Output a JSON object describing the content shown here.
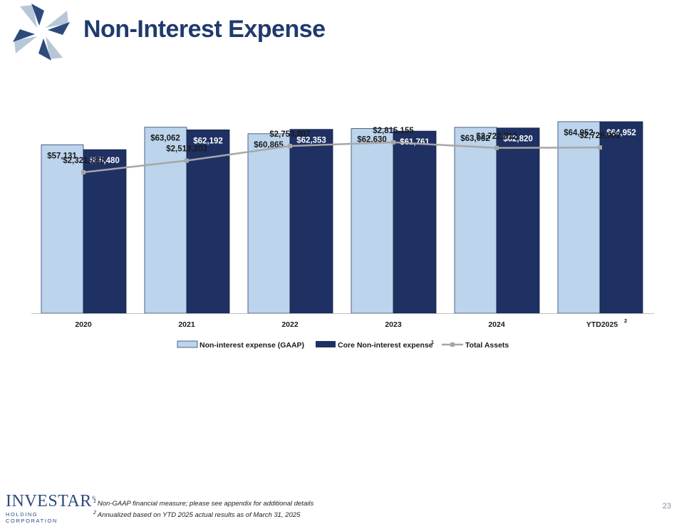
{
  "page_title": "Non-Interest Expense",
  "brand": {
    "name": "INVESTAR",
    "registered": "®",
    "subtitle": "HOLDING CORPORATION"
  },
  "colors": {
    "gaap": "#bcd4ec",
    "core": "#1f3163",
    "total_assets": "#a6a6a6",
    "title": "#1f3a6e"
  },
  "chart_data": {
    "type": "bar",
    "categories": [
      "2020",
      "2021",
      "2022",
      "2023",
      "2024",
      "YTD2025"
    ],
    "category_superscripts": [
      "",
      "",
      "",
      "",
      "",
      "2"
    ],
    "series": [
      {
        "name": "Non-interest expense (GAAP)",
        "kind": "bar",
        "values": [
          57131,
          63062,
          60865,
          62630,
          63032,
          64952
        ],
        "labels": [
          "$57,131",
          "$63,062",
          "$60,865",
          "$62,630",
          "$63,032",
          "$64,952"
        ]
      },
      {
        "name": "Core Non-interest expense",
        "name_superscript": "1",
        "kind": "bar",
        "values": [
          55480,
          62192,
          62353,
          61761,
          62820,
          64952
        ],
        "labels": [
          "$55,480",
          "$62,192",
          "$62,353",
          "$61,761",
          "$62,820",
          "$64,952"
        ]
      },
      {
        "name": "Total Assets",
        "kind": "line",
        "axis": "secondary",
        "values": [
          2321181,
          2513203,
          2753807,
          2815155,
          2722812,
          2729902
        ],
        "labels": [
          "$2,321,181",
          "$2,513,203",
          "$2,753,807",
          "$2,815,155",
          "$2,722,812",
          "$2,729,902"
        ]
      }
    ],
    "ylim": [
      0,
      70000
    ],
    "y2lim": [
      0,
      3400000
    ],
    "legend_position": "bottom",
    "grid": false
  },
  "footnotes": [
    {
      "mark": "1",
      "text": "Non-GAAP financial measure; please see appendix for additional details"
    },
    {
      "mark": "2",
      "text": "Annualized based on YTD 2025 actual results as of March 31, 2025"
    }
  ],
  "page_number": "23"
}
